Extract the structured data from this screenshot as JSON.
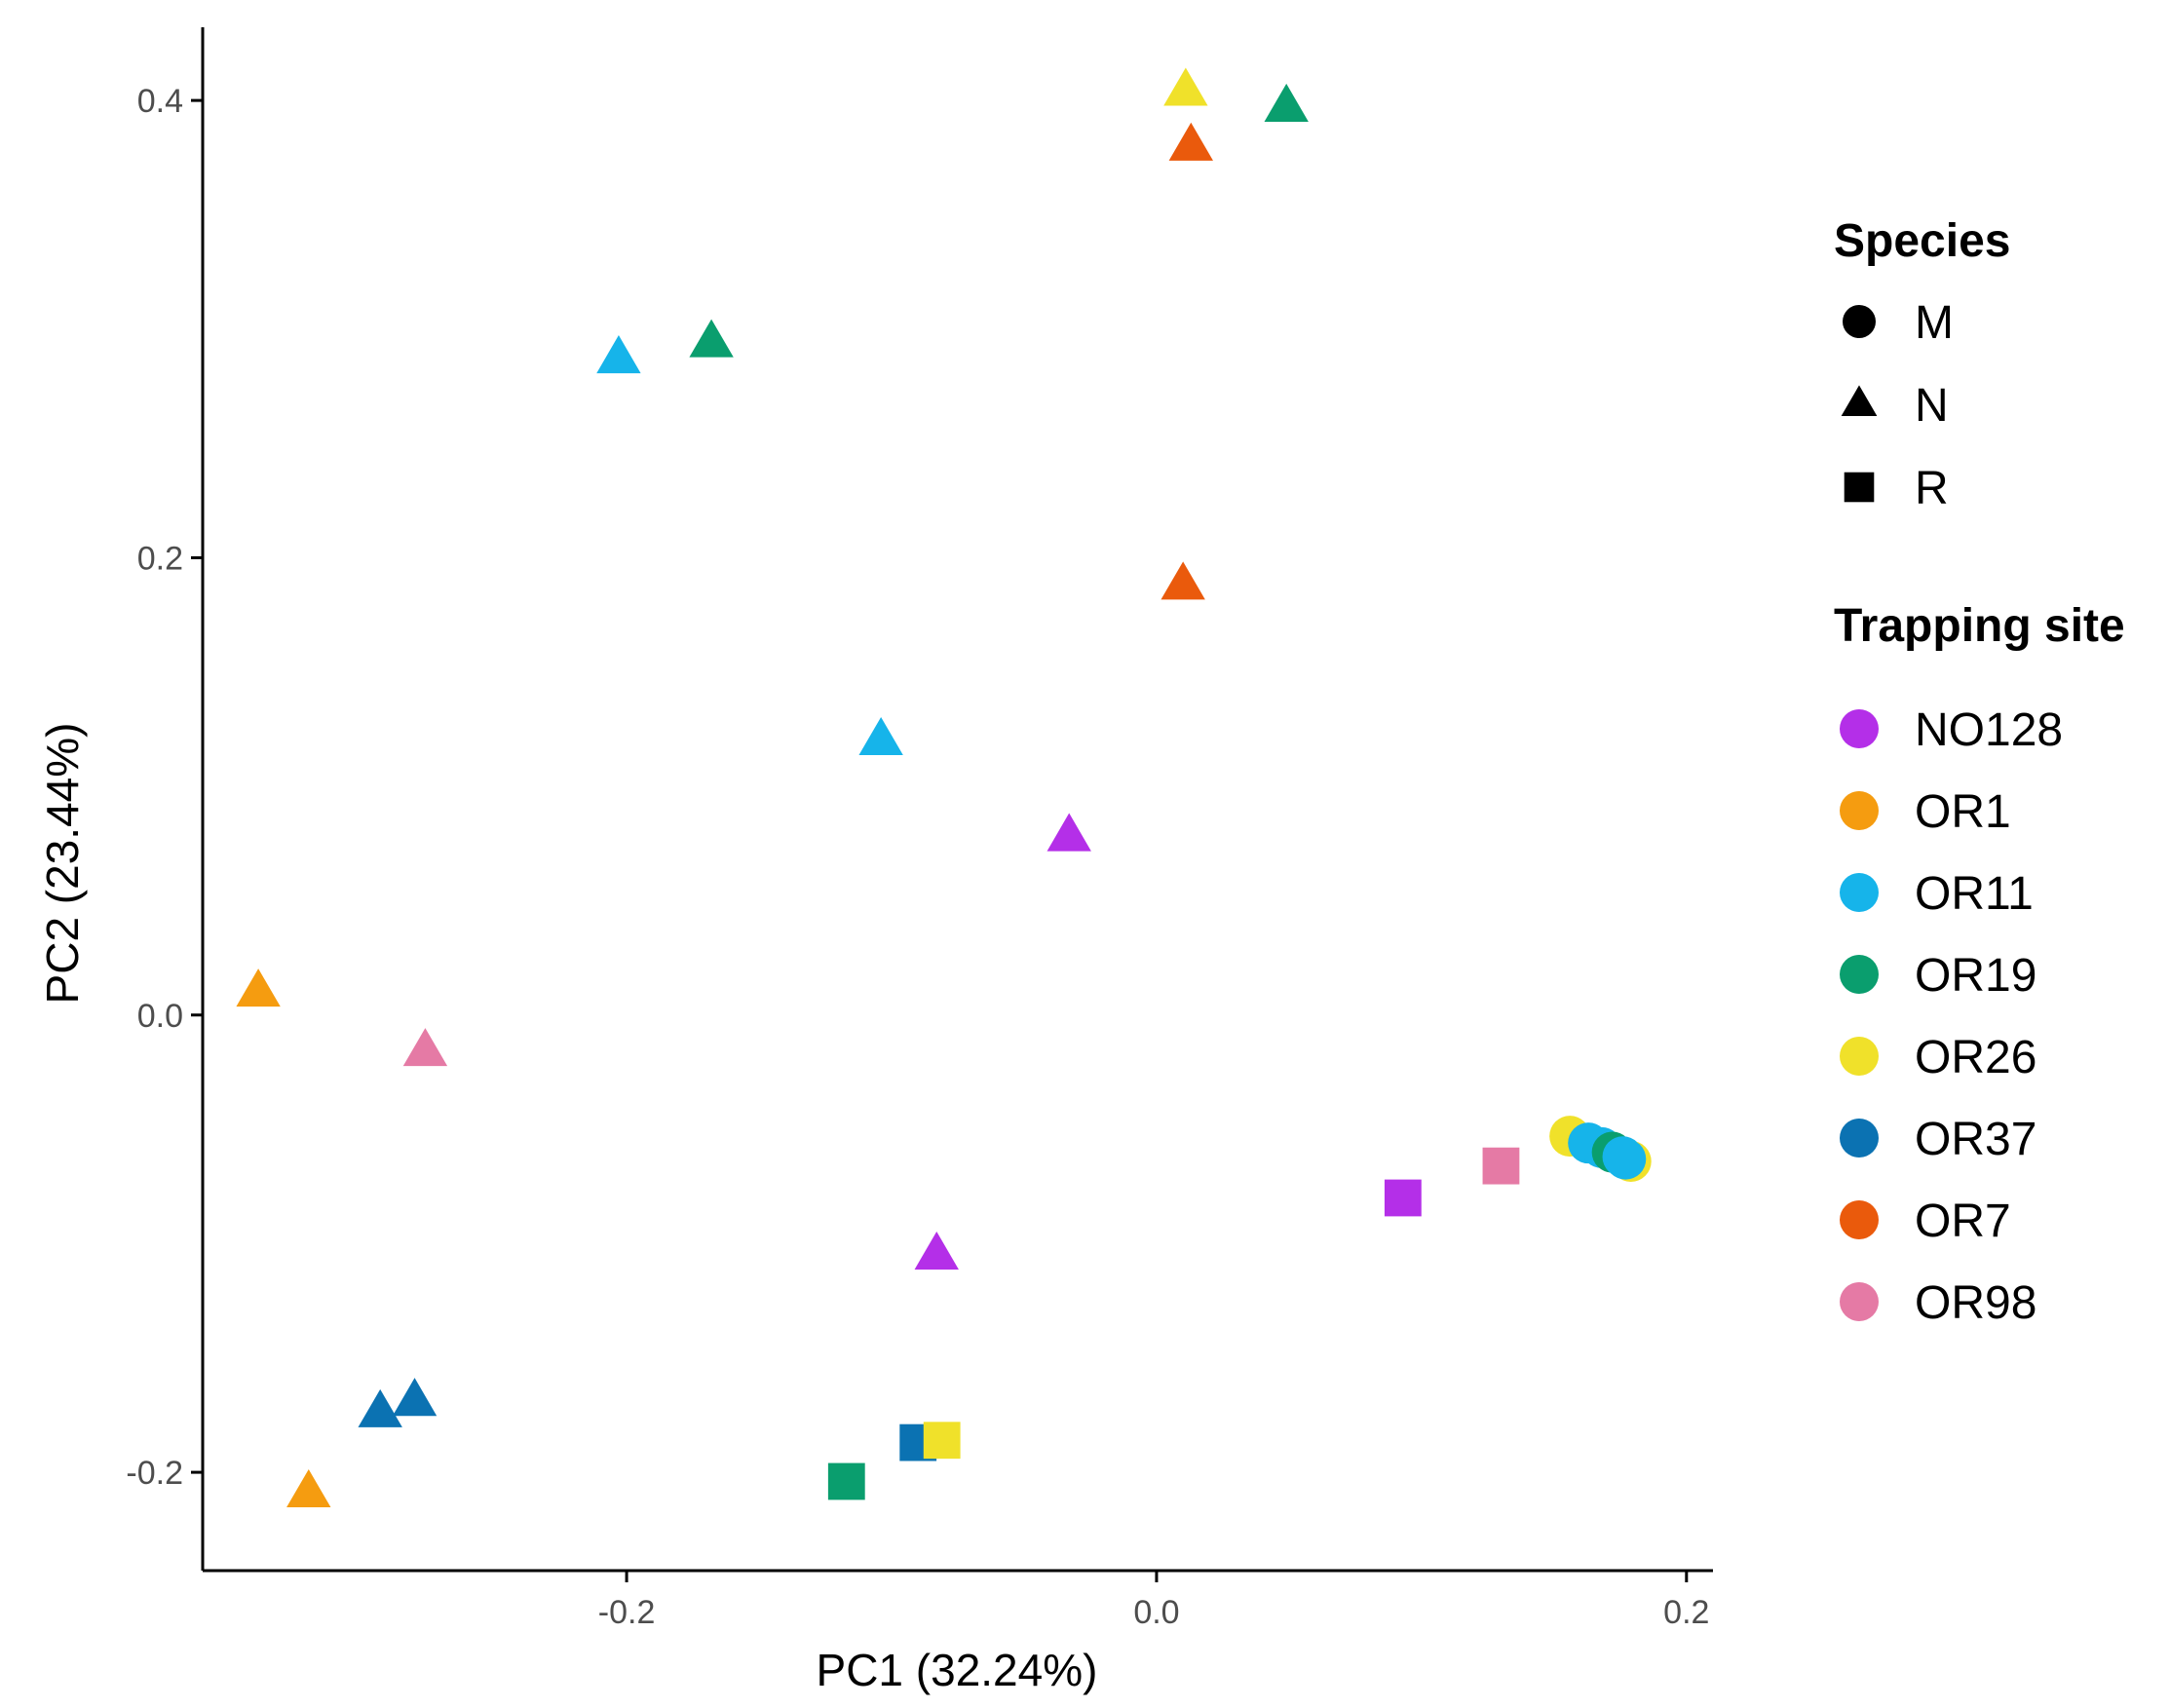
{
  "chart_data": {
    "type": "scatter",
    "xlabel": "PC1 (32.24%)",
    "ylabel": "PC2 (23.44%)",
    "xlim": [
      -0.36,
      0.21
    ],
    "ylim": [
      -0.243,
      0.432
    ],
    "x_ticks": [
      -0.2,
      0.0,
      0.2
    ],
    "x_tick_labels": [
      "-0.2",
      "0.0",
      "0.2"
    ],
    "y_ticks": [
      -0.2,
      0.0,
      0.2,
      0.4
    ],
    "y_tick_labels": [
      "-0.2",
      "0.0",
      "0.2",
      "0.4"
    ],
    "grid": false,
    "legend": {
      "position": "right",
      "shape_title": "Species",
      "shapes": [
        {
          "label": "M",
          "shape": "circle"
        },
        {
          "label": "N",
          "shape": "triangle"
        },
        {
          "label": "R",
          "shape": "square"
        }
      ],
      "color_title": "Trapping site",
      "sites": [
        {
          "label": "NO128",
          "color": "#b42fe8"
        },
        {
          "label": "OR1",
          "color": "#f59c10"
        },
        {
          "label": "OR11",
          "color": "#16b4ea"
        },
        {
          "label": "OR19",
          "color": "#0a9e6e"
        },
        {
          "label": "OR26",
          "color": "#f0e12a"
        },
        {
          "label": "OR37",
          "color": "#0b72b2"
        },
        {
          "label": "OR7",
          "color": "#ea5a0c"
        },
        {
          "label": "OR98",
          "color": "#e57aa5"
        }
      ]
    },
    "points": [
      {
        "x": 0.011,
        "y": 0.404,
        "species": "N",
        "site": "OR26"
      },
      {
        "x": 0.049,
        "y": 0.397,
        "species": "N",
        "site": "OR19"
      },
      {
        "x": 0.013,
        "y": 0.38,
        "species": "N",
        "site": "OR7"
      },
      {
        "x": -0.168,
        "y": 0.294,
        "species": "N",
        "site": "OR19"
      },
      {
        "x": -0.203,
        "y": 0.287,
        "species": "N",
        "site": "OR11"
      },
      {
        "x": 0.01,
        "y": 0.188,
        "species": "N",
        "site": "OR7"
      },
      {
        "x": -0.104,
        "y": 0.12,
        "species": "N",
        "site": "OR11"
      },
      {
        "x": -0.033,
        "y": 0.078,
        "species": "N",
        "site": "NO128"
      },
      {
        "x": -0.339,
        "y": 0.01,
        "species": "N",
        "site": "OR1"
      },
      {
        "x": -0.276,
        "y": -0.016,
        "species": "N",
        "site": "OR98"
      },
      {
        "x": -0.083,
        "y": -0.105,
        "species": "N",
        "site": "NO128"
      },
      {
        "x": -0.293,
        "y": -0.174,
        "species": "N",
        "site": "OR37"
      },
      {
        "x": -0.28,
        "y": -0.169,
        "species": "N",
        "site": "OR37"
      },
      {
        "x": -0.32,
        "y": -0.209,
        "species": "N",
        "site": "OR1"
      },
      {
        "x": 0.093,
        "y": -0.08,
        "species": "R",
        "site": "NO128"
      },
      {
        "x": 0.13,
        "y": -0.066,
        "species": "R",
        "site": "OR98"
      },
      {
        "x": -0.117,
        "y": -0.204,
        "species": "R",
        "site": "OR19"
      },
      {
        "x": -0.09,
        "y": -0.187,
        "species": "R",
        "site": "OR37"
      },
      {
        "x": -0.081,
        "y": -0.186,
        "species": "R",
        "site": "OR26"
      },
      {
        "x": 0.156,
        "y": -0.053,
        "species": "M",
        "site": "OR26"
      },
      {
        "x": 0.163,
        "y": -0.056,
        "species": "M",
        "site": "OR11"
      },
      {
        "x": 0.168,
        "y": -0.058,
        "species": "M",
        "site": "OR11"
      },
      {
        "x": 0.172,
        "y": -0.06,
        "species": "M",
        "site": "OR19"
      },
      {
        "x": 0.176,
        "y": -0.062,
        "species": "M",
        "site": "OR11"
      },
      {
        "x": 0.179,
        "y": -0.064,
        "species": "M",
        "site": "OR26"
      },
      {
        "x": 0.177,
        "y": -0.063,
        "species": "M",
        "site": "OR11"
      }
    ]
  }
}
